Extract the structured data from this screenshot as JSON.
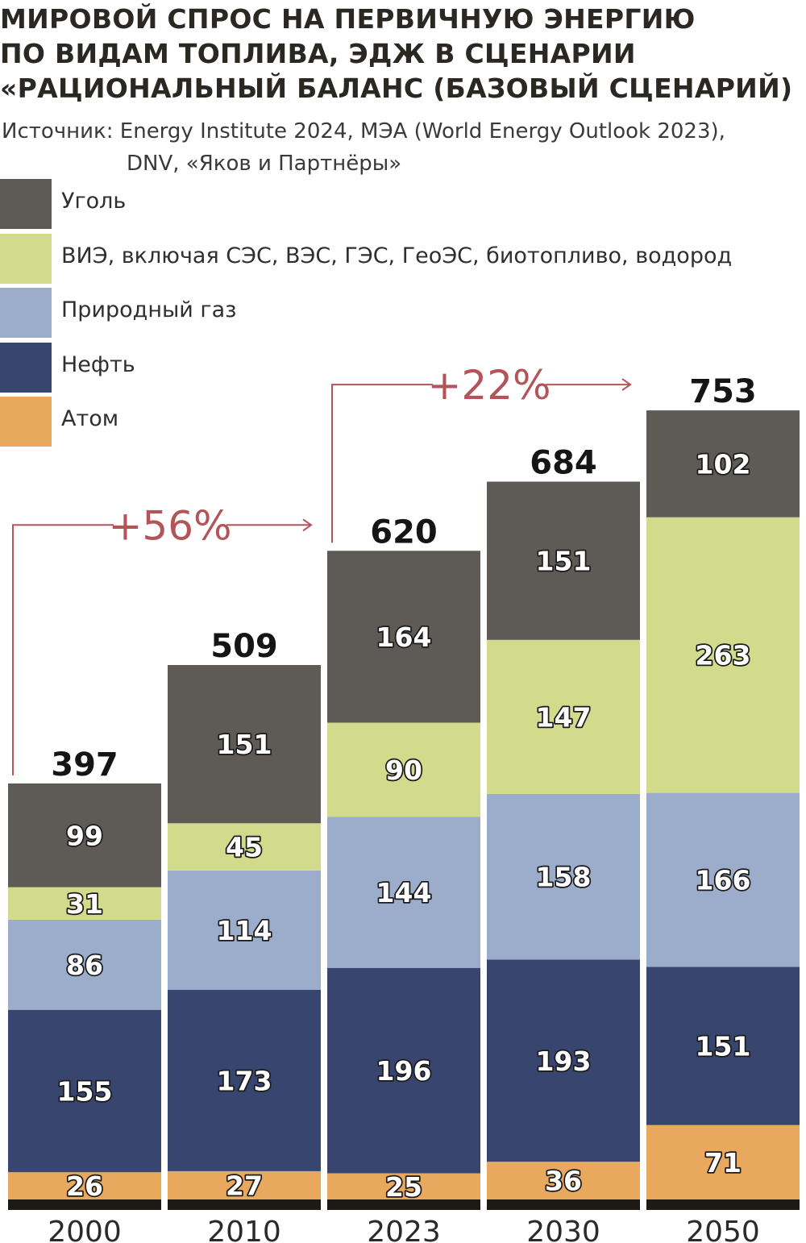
{
  "title_lines": [
    "МИРОВОЙ СПРОС НА ПЕРВИЧНУЮ ЭНЕРГИЮ",
    "ПО ВИДАМ ТОПЛИВА, ЭДЖ В СЦЕНАРИИ",
    "«РАЦИОНАЛЬНЫЙ БАЛАНС (БАЗОВЫЙ СЦЕНАРИЙ)"
  ],
  "source_lines": [
    "Источник: Energy Institute 2024, МЭА (World Energy Outlook 2023),",
    "DNV, «Яков и Партнёры»"
  ],
  "colors": {
    "coal": "#5e5a55",
    "renewables": "#d1db8b",
    "gas": "#9badcb",
    "oil": "#38466f",
    "nuclear": "#e8a95e",
    "arrow": "#b45458",
    "baseline": "#1d1a16"
  },
  "chart_data": {
    "type": "bar",
    "stacked": true,
    "categories": [
      "2000",
      "2010",
      "2023",
      "2030",
      "2050"
    ],
    "series": [
      {
        "name": "Атом",
        "color": "#e8a95e",
        "values": [
          26,
          27,
          25,
          36,
          71
        ]
      },
      {
        "name": "Нефть",
        "color": "#38466f",
        "values": [
          155,
          173,
          196,
          193,
          151
        ]
      },
      {
        "name": "Природный газ",
        "color": "#9badcb",
        "values": [
          86,
          114,
          144,
          158,
          166
        ]
      },
      {
        "name": "ВИЭ, включая СЭС, ВЭС, ГЭС, ГеоЭС, биотопливо, водород",
        "color": "#d1db8b",
        "values": [
          31,
          45,
          90,
          147,
          263
        ]
      },
      {
        "name": "Уголь",
        "color": "#5e5a55",
        "values": [
          99,
          151,
          164,
          151,
          102
        ]
      }
    ],
    "totals": [
      "397",
      "509",
      "620",
      "684",
      "753"
    ],
    "legend_order": [
      "Уголь",
      "ВИЭ, включая СЭС, ВЭС, ГЭС, ГеоЭС, биотопливо, водород",
      "Природный газ",
      "Нефть",
      "Атом"
    ],
    "annotations": [
      {
        "text": "+56%",
        "from": "2000",
        "to": "2023"
      },
      {
        "text": "+22%",
        "from": "2023",
        "to": "2050"
      }
    ],
    "legend_position": "top-left",
    "grid": false
  }
}
